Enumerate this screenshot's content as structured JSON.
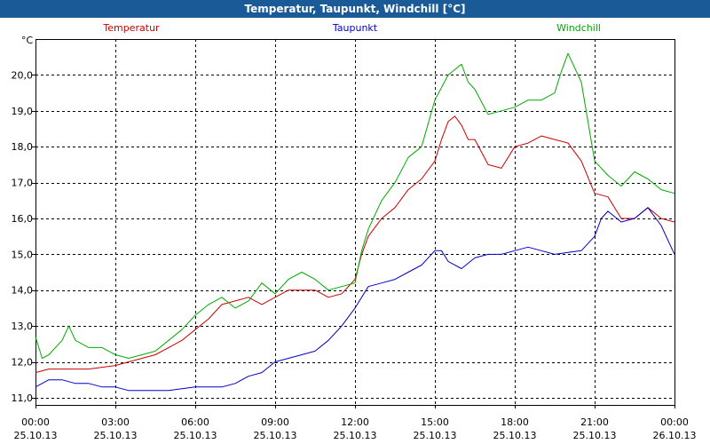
{
  "window": {
    "title": "Temperatur, Taupunkt, Windchill [°C]",
    "title_bar_color": "#1a5a96"
  },
  "chart_data": {
    "type": "line",
    "unit_label": "°C",
    "ylim": [
      10.8,
      21.0
    ],
    "y_ticks": [
      "11,0",
      "12,0",
      "13,0",
      "14,0",
      "15,0",
      "16,0",
      "17,0",
      "18,0",
      "19,0",
      "20,0"
    ],
    "y_tick_values": [
      11,
      12,
      13,
      14,
      15,
      16,
      17,
      18,
      19,
      20
    ],
    "xlim": [
      0,
      24
    ],
    "x_tick_values": [
      0,
      3,
      6,
      9,
      12,
      15,
      18,
      21,
      24
    ],
    "x_ticks": [
      {
        "time": "00:00",
        "date": "25.10.13"
      },
      {
        "time": "03:00",
        "date": "25.10.13"
      },
      {
        "time": "06:00",
        "date": "25.10.13"
      },
      {
        "time": "09:00",
        "date": "25.10.13"
      },
      {
        "time": "12:00",
        "date": "25.10.13"
      },
      {
        "time": "15:00",
        "date": "25.10.13"
      },
      {
        "time": "18:00",
        "date": "25.10.13"
      },
      {
        "time": "21:00",
        "date": "25.10.13"
      },
      {
        "time": "00:00",
        "date": "26.10.13"
      }
    ],
    "grid": true,
    "legend_position": "top",
    "series": [
      {
        "name": "Temperatur",
        "color": "#cc0000",
        "x": [
          0,
          0.5,
          1,
          1.5,
          2,
          2.5,
          3,
          3.5,
          4,
          4.5,
          5,
          5.5,
          6,
          6.5,
          7,
          7.5,
          8,
          8.5,
          9,
          9.5,
          10,
          10.5,
          11,
          11.5,
          12,
          12.25,
          12.5,
          13,
          13.5,
          14,
          14.5,
          15,
          15.25,
          15.5,
          15.75,
          16,
          16.25,
          16.5,
          17,
          17.5,
          18,
          18.5,
          19,
          19.5,
          20,
          20.5,
          21,
          21.5,
          22,
          22.5,
          23,
          23.5,
          24
        ],
        "values": [
          11.7,
          11.8,
          11.8,
          11.8,
          11.8,
          11.85,
          11.9,
          12.0,
          12.1,
          12.2,
          12.4,
          12.6,
          12.9,
          13.2,
          13.6,
          13.7,
          13.8,
          13.6,
          13.8,
          14.0,
          14.0,
          14.0,
          13.8,
          13.9,
          14.3,
          15.0,
          15.5,
          16.0,
          16.3,
          16.8,
          17.1,
          17.6,
          18.2,
          18.7,
          18.85,
          18.6,
          18.2,
          18.2,
          17.5,
          17.4,
          18.0,
          18.1,
          18.3,
          18.2,
          18.1,
          17.6,
          16.7,
          16.6,
          16.0,
          16.0,
          16.3,
          16.0,
          15.9
        ]
      },
      {
        "name": "Taupunkt",
        "color": "#0000cc",
        "x": [
          0,
          0.5,
          1,
          1.5,
          2,
          2.5,
          3,
          3.5,
          4,
          4.5,
          5,
          5.5,
          6,
          6.5,
          7,
          7.5,
          8,
          8.5,
          9,
          9.5,
          10,
          10.5,
          11,
          11.5,
          12,
          12.5,
          13,
          13.5,
          14,
          14.5,
          15,
          15.25,
          15.5,
          16,
          16.5,
          17,
          17.5,
          18,
          18.5,
          19,
          19.5,
          20,
          20.5,
          21,
          21.25,
          21.5,
          22,
          22.5,
          23,
          23.5,
          24
        ],
        "values": [
          11.3,
          11.5,
          11.5,
          11.4,
          11.4,
          11.3,
          11.3,
          11.2,
          11.2,
          11.2,
          11.2,
          11.25,
          11.3,
          11.3,
          11.3,
          11.4,
          11.6,
          11.7,
          12.0,
          12.1,
          12.2,
          12.3,
          12.6,
          13.0,
          13.5,
          14.1,
          14.2,
          14.3,
          14.5,
          14.7,
          15.1,
          15.1,
          14.8,
          14.6,
          14.9,
          15.0,
          15.0,
          15.1,
          15.2,
          15.1,
          15.0,
          15.05,
          15.1,
          15.5,
          16.0,
          16.2,
          15.9,
          16.0,
          16.3,
          15.8,
          15.0
        ]
      },
      {
        "name": "Windchill",
        "color": "#00aa00",
        "x": [
          0,
          0.25,
          0.5,
          1,
          1.25,
          1.5,
          2,
          2.5,
          3,
          3.5,
          4,
          4.5,
          5,
          5.5,
          6,
          6.5,
          7,
          7.5,
          8,
          8.5,
          9,
          9.5,
          10,
          10.5,
          11,
          11.5,
          12,
          12.25,
          12.5,
          13,
          13.5,
          14,
          14.5,
          15,
          15.5,
          16,
          16.25,
          16.5,
          17,
          17.5,
          18,
          18.5,
          19,
          19.5,
          19.75,
          20,
          20.5,
          21,
          21.5,
          22,
          22.5,
          23,
          23.5,
          24
        ],
        "values": [
          12.7,
          12.1,
          12.2,
          12.6,
          13.0,
          12.6,
          12.4,
          12.4,
          12.2,
          12.1,
          12.2,
          12.3,
          12.6,
          12.9,
          13.3,
          13.6,
          13.8,
          13.5,
          13.7,
          14.2,
          13.9,
          14.3,
          14.5,
          14.3,
          14.0,
          14.1,
          14.2,
          15.1,
          15.7,
          16.5,
          17.0,
          17.7,
          18.0,
          19.3,
          20.0,
          20.3,
          19.8,
          19.6,
          18.9,
          19.0,
          19.1,
          19.3,
          19.3,
          19.5,
          20.1,
          20.6,
          19.8,
          17.6,
          17.2,
          16.9,
          17.3,
          17.1,
          16.8,
          16.7
        ]
      }
    ]
  }
}
